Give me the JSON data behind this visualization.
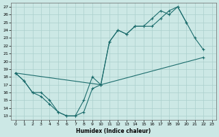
{
  "xlabel": "Humidex (Indice chaleur)",
  "background_color": "#cce8e5",
  "grid_color": "#aacfcc",
  "line_color": "#1a6b6b",
  "line1_x": [
    0,
    1,
    2,
    3,
    4,
    5,
    6,
    7,
    8,
    9,
    10,
    11,
    12,
    13,
    14,
    15,
    16,
    17,
    18,
    19,
    20,
    21,
    22
  ],
  "line1_y": [
    18.5,
    17.5,
    16.0,
    16.0,
    15.0,
    13.5,
    13.0,
    13.0,
    13.5,
    16.5,
    17.0,
    22.5,
    24.0,
    23.5,
    24.5,
    24.5,
    24.5,
    25.5,
    26.5,
    27.0,
    25.0,
    23.0,
    21.5
  ],
  "line2_x": [
    0,
    10,
    22
  ],
  "line2_y": [
    18.5,
    17.0,
    20.5
  ],
  "line3_x": [
    0,
    1,
    2,
    3,
    4,
    5,
    6,
    7,
    8,
    9,
    10,
    11,
    12,
    13,
    14,
    15,
    16,
    17,
    18,
    19,
    20,
    21,
    22
  ],
  "line3_y": [
    18.5,
    17.5,
    16.0,
    15.5,
    14.5,
    13.5,
    13.0,
    13.0,
    15.0,
    18.0,
    17.0,
    22.5,
    24.0,
    23.5,
    24.5,
    24.5,
    25.5,
    26.5,
    26.0,
    27.0,
    25.0,
    null,
    null
  ],
  "xlim": [
    -0.5,
    23.5
  ],
  "ylim": [
    12.5,
    27.5
  ],
  "yticks": [
    13,
    14,
    15,
    16,
    17,
    18,
    19,
    20,
    21,
    22,
    23,
    24,
    25,
    26,
    27
  ],
  "xticks": [
    0,
    1,
    2,
    3,
    4,
    5,
    6,
    7,
    8,
    9,
    10,
    11,
    12,
    13,
    14,
    15,
    16,
    17,
    18,
    19,
    20,
    21,
    22,
    23
  ]
}
